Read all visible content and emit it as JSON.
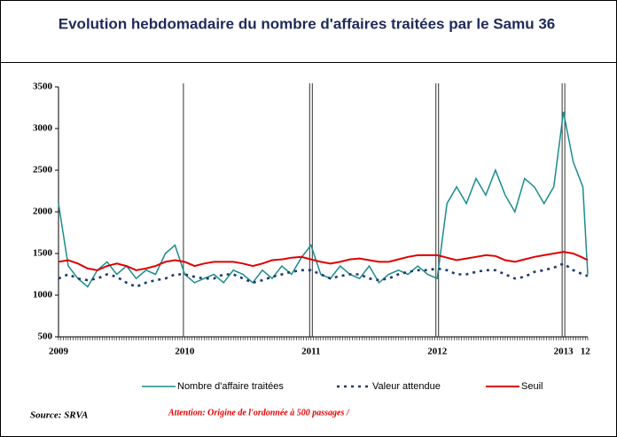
{
  "chart_data": {
    "type": "line",
    "title": "Evolution hebdomadaire du nombre d'affaires traitées par le Samu 36",
    "source": "Source: SRVA",
    "annotation": "Attention: Origine de l'ordonnée à 500 passages /",
    "x": [
      0,
      4,
      8,
      12,
      16,
      20,
      24,
      28,
      32,
      36,
      40,
      44,
      48,
      52,
      56,
      60,
      64,
      68,
      72,
      76,
      80,
      84,
      88,
      92,
      96,
      100,
      104,
      108,
      112,
      116,
      120,
      124,
      128,
      132,
      136,
      140,
      144,
      148,
      152,
      156,
      160,
      164,
      168,
      172,
      176,
      180,
      184,
      188,
      192,
      196,
      200,
      204,
      208,
      212,
      216,
      218
    ],
    "series": [
      {
        "name": "Nombre d'affaire traitées",
        "color": "#1a8c8c",
        "style": "solid",
        "values": [
          2100,
          1350,
          1200,
          1100,
          1300,
          1400,
          1250,
          1350,
          1200,
          1300,
          1250,
          1500,
          1600,
          1250,
          1150,
          1200,
          1250,
          1150,
          1300,
          1250,
          1150,
          1300,
          1200,
          1350,
          1250,
          1450,
          1600,
          1250,
          1200,
          1350,
          1250,
          1200,
          1350,
          1150,
          1250,
          1300,
          1250,
          1350,
          1250,
          1200,
          2100,
          2300,
          2100,
          2400,
          2200,
          2500,
          2200,
          2000,
          2400,
          2300,
          2100,
          2300,
          3200,
          2600,
          2300,
          1250
        ]
      },
      {
        "name": "Valeur attendue",
        "color": "#1f3a6e",
        "style": "dotted",
        "values": [
          1200,
          1250,
          1200,
          1180,
          1200,
          1250,
          1220,
          1150,
          1100,
          1150,
          1180,
          1200,
          1250,
          1250,
          1220,
          1200,
          1200,
          1250,
          1250,
          1200,
          1150,
          1180,
          1220,
          1250,
          1280,
          1300,
          1300,
          1250,
          1200,
          1230,
          1250,
          1250,
          1200,
          1180,
          1200,
          1250,
          1280,
          1300,
          1300,
          1320,
          1300,
          1250,
          1250,
          1280,
          1300,
          1300,
          1250,
          1200,
          1220,
          1280,
          1300,
          1330,
          1380,
          1300,
          1250,
          1230
        ]
      },
      {
        "name": "Seuil",
        "color": "#e00000",
        "style": "solid",
        "values": [
          1400,
          1420,
          1380,
          1320,
          1300,
          1350,
          1380,
          1350,
          1300,
          1320,
          1350,
          1400,
          1420,
          1400,
          1350,
          1380,
          1400,
          1400,
          1400,
          1380,
          1350,
          1380,
          1420,
          1430,
          1450,
          1460,
          1430,
          1400,
          1380,
          1400,
          1430,
          1440,
          1420,
          1400,
          1400,
          1430,
          1460,
          1480,
          1480,
          1480,
          1450,
          1420,
          1440,
          1460,
          1480,
          1470,
          1420,
          1400,
          1430,
          1460,
          1480,
          1500,
          1520,
          1500,
          1450,
          1420
        ]
      }
    ],
    "xlim": [
      0,
      218
    ],
    "xticks": [
      {
        "value": 0,
        "label": "2009"
      },
      {
        "value": 52,
        "label": "2010"
      },
      {
        "value": 104,
        "label": "2011"
      },
      {
        "value": 156,
        "label": "2012"
      },
      {
        "value": 208,
        "label": "2013"
      },
      {
        "value": 217,
        "label": "12"
      }
    ],
    "ylim": [
      500,
      3500
    ],
    "yticks": [
      500,
      1000,
      1500,
      2000,
      2500,
      3000,
      3500
    ],
    "year_lines": true,
    "legend": "bottom"
  }
}
